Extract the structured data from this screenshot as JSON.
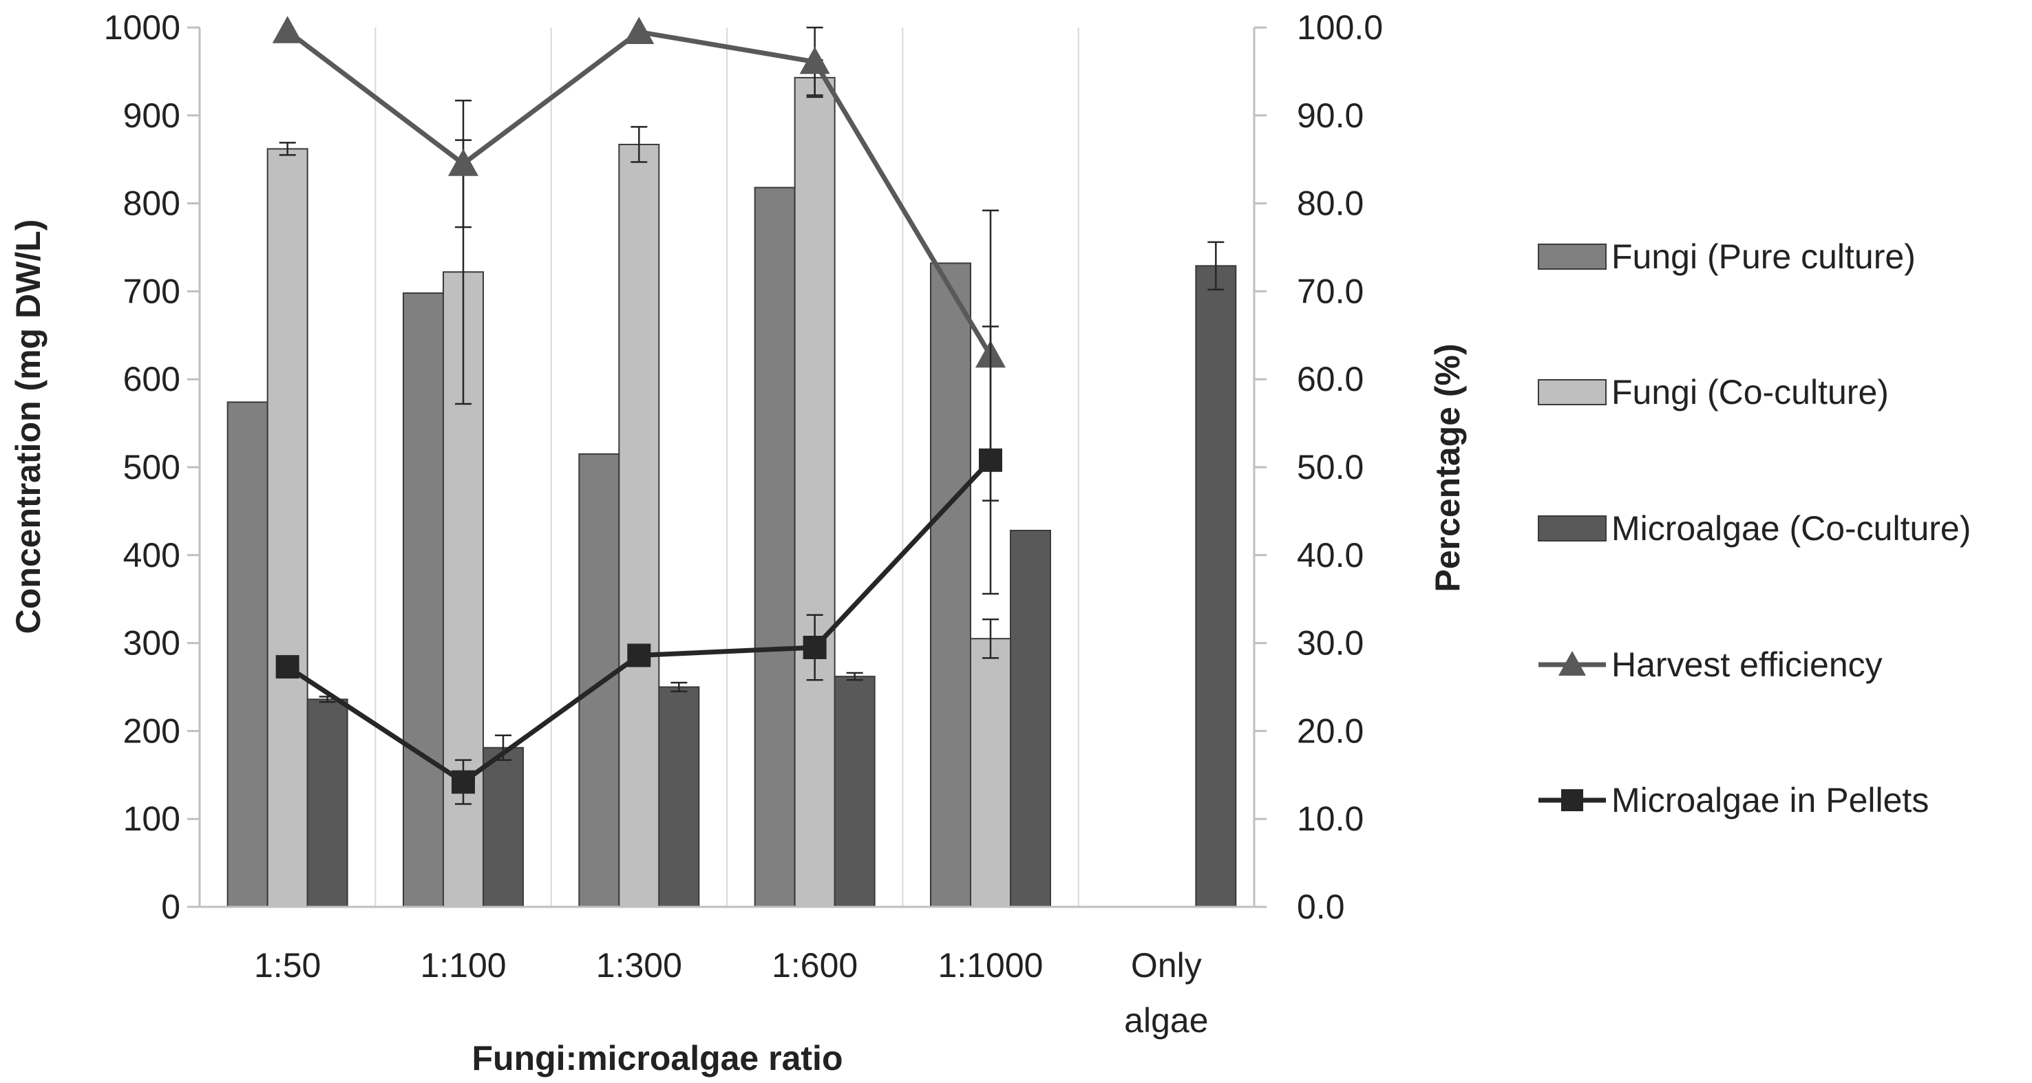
{
  "chart_data": {
    "type": "bar",
    "title": "",
    "xlabel": "Fungi:microalgae ratio",
    "ylabel": "Concentration (mg DW/L)",
    "y2label": "Percentage (%)",
    "ylim": [
      0,
      1000
    ],
    "y2lim": [
      0,
      100
    ],
    "yticks": [
      "0",
      "100",
      "200",
      "300",
      "400",
      "500",
      "600",
      "700",
      "800",
      "900",
      "1000"
    ],
    "y2ticks": [
      "0.0",
      "10.0",
      "20.0",
      "30.0",
      "40.0",
      "50.0",
      "60.0",
      "70.0",
      "80.0",
      "90.0",
      "100.0"
    ],
    "categories": [
      [
        "1:50"
      ],
      [
        "1:100"
      ],
      [
        "1:300"
      ],
      [
        "1:600"
      ],
      [
        "1:1000"
      ],
      [
        "Only",
        "algae"
      ]
    ],
    "bar_series": [
      {
        "name": "Fungi (Pure culture)",
        "color": "#808080",
        "values": [
          574,
          698,
          515,
          818,
          732,
          null
        ],
        "errors": [
          null,
          null,
          null,
          null,
          null,
          null
        ]
      },
      {
        "name": "Fungi (Co-culture)",
        "color": "#bfbfbf",
        "values": [
          862,
          722,
          867,
          943,
          305,
          null
        ],
        "errors": [
          7,
          150,
          20,
          20,
          22,
          null
        ]
      },
      {
        "name": "Microalgae (Co-culture)",
        "color": "#595959",
        "values": [
          236,
          181,
          250,
          262,
          428,
          729
        ],
        "errors": [
          3,
          14,
          5,
          4,
          null,
          27
        ]
      }
    ],
    "line_series": [
      {
        "name": "Harvest efficiency",
        "axis": "right",
        "color": "#595959",
        "marker": "triangle",
        "values": [
          99.6,
          84.5,
          99.5,
          96.1,
          62.7,
          null
        ],
        "errors": [
          null,
          7.2,
          null,
          4,
          16.5,
          null
        ]
      },
      {
        "name": "Microalgae in Pellets",
        "axis": "right",
        "color": "#262626",
        "marker": "square",
        "values": [
          27.3,
          14.2,
          28.6,
          29.5,
          50.8,
          null
        ],
        "errors": [
          null,
          2.5,
          null,
          3.7,
          15.2,
          null
        ]
      }
    ],
    "legend_position": "right",
    "legend": [
      "Fungi (Pure culture)",
      "Fungi (Co-culture)",
      "Microalgae (Co-culture)",
      "Harvest efficiency",
      "Microalgae in Pellets"
    ]
  }
}
